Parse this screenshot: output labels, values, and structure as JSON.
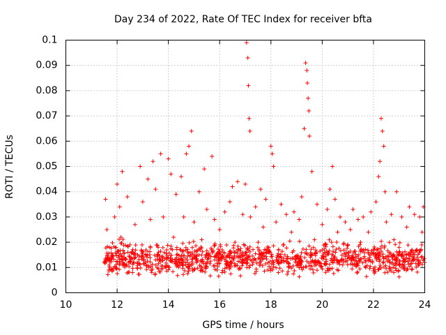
{
  "chart_data": {
    "type": "scatter",
    "title": "Day 234 of 2022, Rate Of TEC Index for receiver bfta",
    "xlabel": "GPS time / hours",
    "ylabel": "ROTI / TECUs",
    "xlim": [
      10,
      24
    ],
    "ylim": [
      0,
      0.1
    ],
    "x_ticks": [
      "10",
      "12",
      "14",
      "16",
      "18",
      "20",
      "22",
      "24"
    ],
    "y_ticks": [
      "0",
      "0.01",
      "0.02",
      "0.03",
      "0.04",
      "0.05",
      "0.06",
      "0.07",
      "0.08",
      "0.09",
      "0.1"
    ],
    "x_tick_values": [
      10,
      12,
      14,
      16,
      18,
      20,
      22,
      24
    ],
    "y_tick_values": [
      0,
      0.01,
      0.02,
      0.03,
      0.04,
      0.05,
      0.06,
      0.07,
      0.08,
      0.09,
      0.1
    ],
    "grid": true,
    "marker": "+",
    "color": "#ff0000",
    "series": [
      {
        "name": "ROTI",
        "points": [
          [
            11.5,
            0.012
          ],
          [
            11.55,
            0.037
          ],
          [
            11.6,
            0.025
          ],
          [
            11.7,
            0.018
          ],
          [
            11.8,
            0.009
          ],
          [
            11.9,
            0.03
          ],
          [
            12.0,
            0.043
          ],
          [
            12.05,
            0.014
          ],
          [
            12.1,
            0.034
          ],
          [
            12.15,
            0.022
          ],
          [
            12.2,
            0.048
          ],
          [
            12.3,
            0.011
          ],
          [
            12.4,
            0.038
          ],
          [
            12.5,
            0.019
          ],
          [
            12.6,
            0.008
          ],
          [
            12.7,
            0.027
          ],
          [
            12.8,
            0.015
          ],
          [
            12.9,
            0.05
          ],
          [
            13.0,
            0.036
          ],
          [
            13.1,
            0.012
          ],
          [
            13.2,
            0.045
          ],
          [
            13.3,
            0.029
          ],
          [
            13.4,
            0.052
          ],
          [
            13.5,
            0.041
          ],
          [
            13.6,
            0.018
          ],
          [
            13.7,
            0.055
          ],
          [
            13.8,
            0.03
          ],
          [
            13.9,
            0.01
          ],
          [
            14.0,
            0.053
          ],
          [
            14.1,
            0.047
          ],
          [
            14.2,
            0.022
          ],
          [
            14.3,
            0.039
          ],
          [
            14.4,
            0.013
          ],
          [
            14.5,
            0.046
          ],
          [
            14.6,
            0.03
          ],
          [
            14.7,
            0.055
          ],
          [
            14.8,
            0.058
          ],
          [
            14.9,
            0.064
          ],
          [
            15.0,
            0.028
          ],
          [
            15.1,
            0.012
          ],
          [
            15.2,
            0.04
          ],
          [
            15.3,
            0.021
          ],
          [
            15.4,
            0.049
          ],
          [
            15.5,
            0.033
          ],
          [
            15.6,
            0.015
          ],
          [
            15.7,
            0.054
          ],
          [
            15.8,
            0.029
          ],
          [
            15.9,
            0.009
          ],
          [
            16.0,
            0.025
          ],
          [
            16.1,
            0.017
          ],
          [
            16.2,
            0.032
          ],
          [
            16.3,
            0.011
          ],
          [
            16.4,
            0.036
          ],
          [
            16.5,
            0.042
          ],
          [
            16.6,
            0.02
          ],
          [
            16.7,
            0.044
          ],
          [
            16.8,
            0.014
          ],
          [
            16.9,
            0.031
          ],
          [
            17.0,
            0.043
          ],
          [
            17.05,
            0.099
          ],
          [
            17.1,
            0.093
          ],
          [
            17.12,
            0.082
          ],
          [
            17.15,
            0.069
          ],
          [
            17.18,
            0.064
          ],
          [
            17.2,
            0.03
          ],
          [
            17.3,
            0.012
          ],
          [
            17.4,
            0.034
          ],
          [
            17.5,
            0.02
          ],
          [
            17.6,
            0.041
          ],
          [
            17.7,
            0.026
          ],
          [
            17.8,
            0.037
          ],
          [
            17.9,
            0.016
          ],
          [
            18.0,
            0.058
          ],
          [
            18.05,
            0.055
          ],
          [
            18.1,
            0.05
          ],
          [
            18.2,
            0.028
          ],
          [
            18.3,
            0.013
          ],
          [
            18.4,
            0.035
          ],
          [
            18.5,
            0.019
          ],
          [
            18.6,
            0.031
          ],
          [
            18.7,
            0.01
          ],
          [
            18.8,
            0.024
          ],
          [
            18.9,
            0.032
          ],
          [
            19.0,
            0.014
          ],
          [
            19.1,
            0.029
          ],
          [
            19.2,
            0.038
          ],
          [
            19.3,
            0.065
          ],
          [
            19.35,
            0.091
          ],
          [
            19.4,
            0.088
          ],
          [
            19.42,
            0.083
          ],
          [
            19.45,
            0.077
          ],
          [
            19.48,
            0.072
          ],
          [
            19.5,
            0.062
          ],
          [
            19.6,
            0.048
          ],
          [
            19.7,
            0.021
          ],
          [
            19.8,
            0.035
          ],
          [
            19.9,
            0.012
          ],
          [
            20.0,
            0.027
          ],
          [
            20.1,
            0.016
          ],
          [
            20.2,
            0.033
          ],
          [
            20.3,
            0.041
          ],
          [
            20.4,
            0.05
          ],
          [
            20.5,
            0.037
          ],
          [
            20.6,
            0.024
          ],
          [
            20.7,
            0.03
          ],
          [
            20.8,
            0.011
          ],
          [
            20.9,
            0.028
          ],
          [
            21.0,
            0.019
          ],
          [
            21.1,
            0.025
          ],
          [
            21.2,
            0.033
          ],
          [
            21.3,
            0.014
          ],
          [
            21.4,
            0.029
          ],
          [
            21.5,
            0.02
          ],
          [
            21.6,
            0.03
          ],
          [
            21.7,
            0.01
          ],
          [
            21.8,
            0.024
          ],
          [
            21.9,
            0.032
          ],
          [
            22.0,
            0.017
          ],
          [
            22.1,
            0.036
          ],
          [
            22.2,
            0.046
          ],
          [
            22.25,
            0.052
          ],
          [
            22.3,
            0.069
          ],
          [
            22.35,
            0.064
          ],
          [
            22.4,
            0.058
          ],
          [
            22.45,
            0.04
          ],
          [
            22.5,
            0.028
          ],
          [
            22.6,
            0.013
          ],
          [
            22.7,
            0.031
          ],
          [
            22.8,
            0.021
          ],
          [
            22.9,
            0.04
          ],
          [
            23.0,
            0.018
          ],
          [
            23.1,
            0.03
          ],
          [
            23.2,
            0.011
          ],
          [
            23.3,
            0.026
          ],
          [
            23.4,
            0.034
          ],
          [
            23.5,
            0.017
          ],
          [
            23.6,
            0.031
          ],
          [
            23.7,
            0.014
          ],
          [
            23.8,
            0.03
          ],
          [
            23.9,
            0.024
          ],
          [
            23.95,
            0.034
          ],
          [
            24.0,
            0.012
          ]
        ],
        "dense_band": {
          "x_range": [
            11.5,
            24.0
          ],
          "y_range": [
            0.005,
            0.022
          ],
          "point_count": 1100
        }
      }
    ]
  }
}
